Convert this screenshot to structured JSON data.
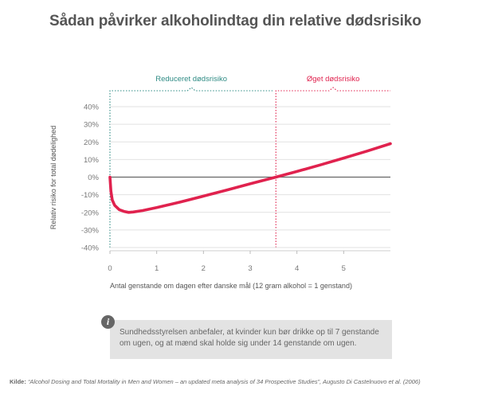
{
  "title": "Sådan påvirker alkoholindtag din relative dødsrisiko",
  "regions": {
    "reduced_label": "Reduceret dødsrisiko",
    "reduced_color": "#2e8b84",
    "increased_label": "Øget dødsrisiko",
    "increased_color": "#e0224e"
  },
  "chart_data": {
    "type": "line",
    "xlabel": "Antal genstande om dagen efter danske mål (12 gram alkohol = 1 genstand)",
    "ylabel": "Relativ risiko for total dødelighed",
    "x_ticks": [
      "0",
      "1",
      "2",
      "3",
      "4",
      "5"
    ],
    "x_tick_values": [
      0,
      1,
      2,
      3,
      4,
      5
    ],
    "y_ticks": [
      "40%",
      "30%",
      "20%",
      "10%",
      "0%",
      "-10%",
      "-20%",
      "-30%",
      "-40%"
    ],
    "y_tick_values": [
      40,
      30,
      20,
      10,
      0,
      -10,
      -20,
      -30,
      -40
    ],
    "xlim": [
      0,
      6
    ],
    "ylim": [
      -40,
      40
    ],
    "grid": true,
    "line_color": "#e0224e",
    "crossover_x": 3.55,
    "series": [
      {
        "x": [
          0,
          0.02,
          0.05,
          0.1,
          0.2,
          0.3,
          0.4,
          0.5,
          0.7,
          1.0,
          1.5,
          2.0,
          2.5,
          3.0,
          3.55,
          4.0,
          4.5,
          5.0,
          5.5,
          6.0
        ],
        "values": [
          0,
          -8,
          -13,
          -16,
          -18.5,
          -19.5,
          -20,
          -19.8,
          -19,
          -17.3,
          -14.2,
          -10.8,
          -7.3,
          -3.8,
          0,
          3.2,
          6.9,
          10.8,
          14.8,
          19
        ]
      }
    ]
  },
  "note": {
    "icon": "info-icon",
    "text": "Sundhedsstyrelsen anbefaler, at kvinder kun bør drikke op til 7 genstande om ugen, og at mænd skal holde sig under 14 genstande om ugen."
  },
  "source": {
    "label": "Kilde:",
    "text": "“Alcohol Dosing and Total Mortality in Men and Women – an updated meta analysis of 34 Prospective Studies”, Augusto Di Castelnuovo et al. (2006)"
  }
}
